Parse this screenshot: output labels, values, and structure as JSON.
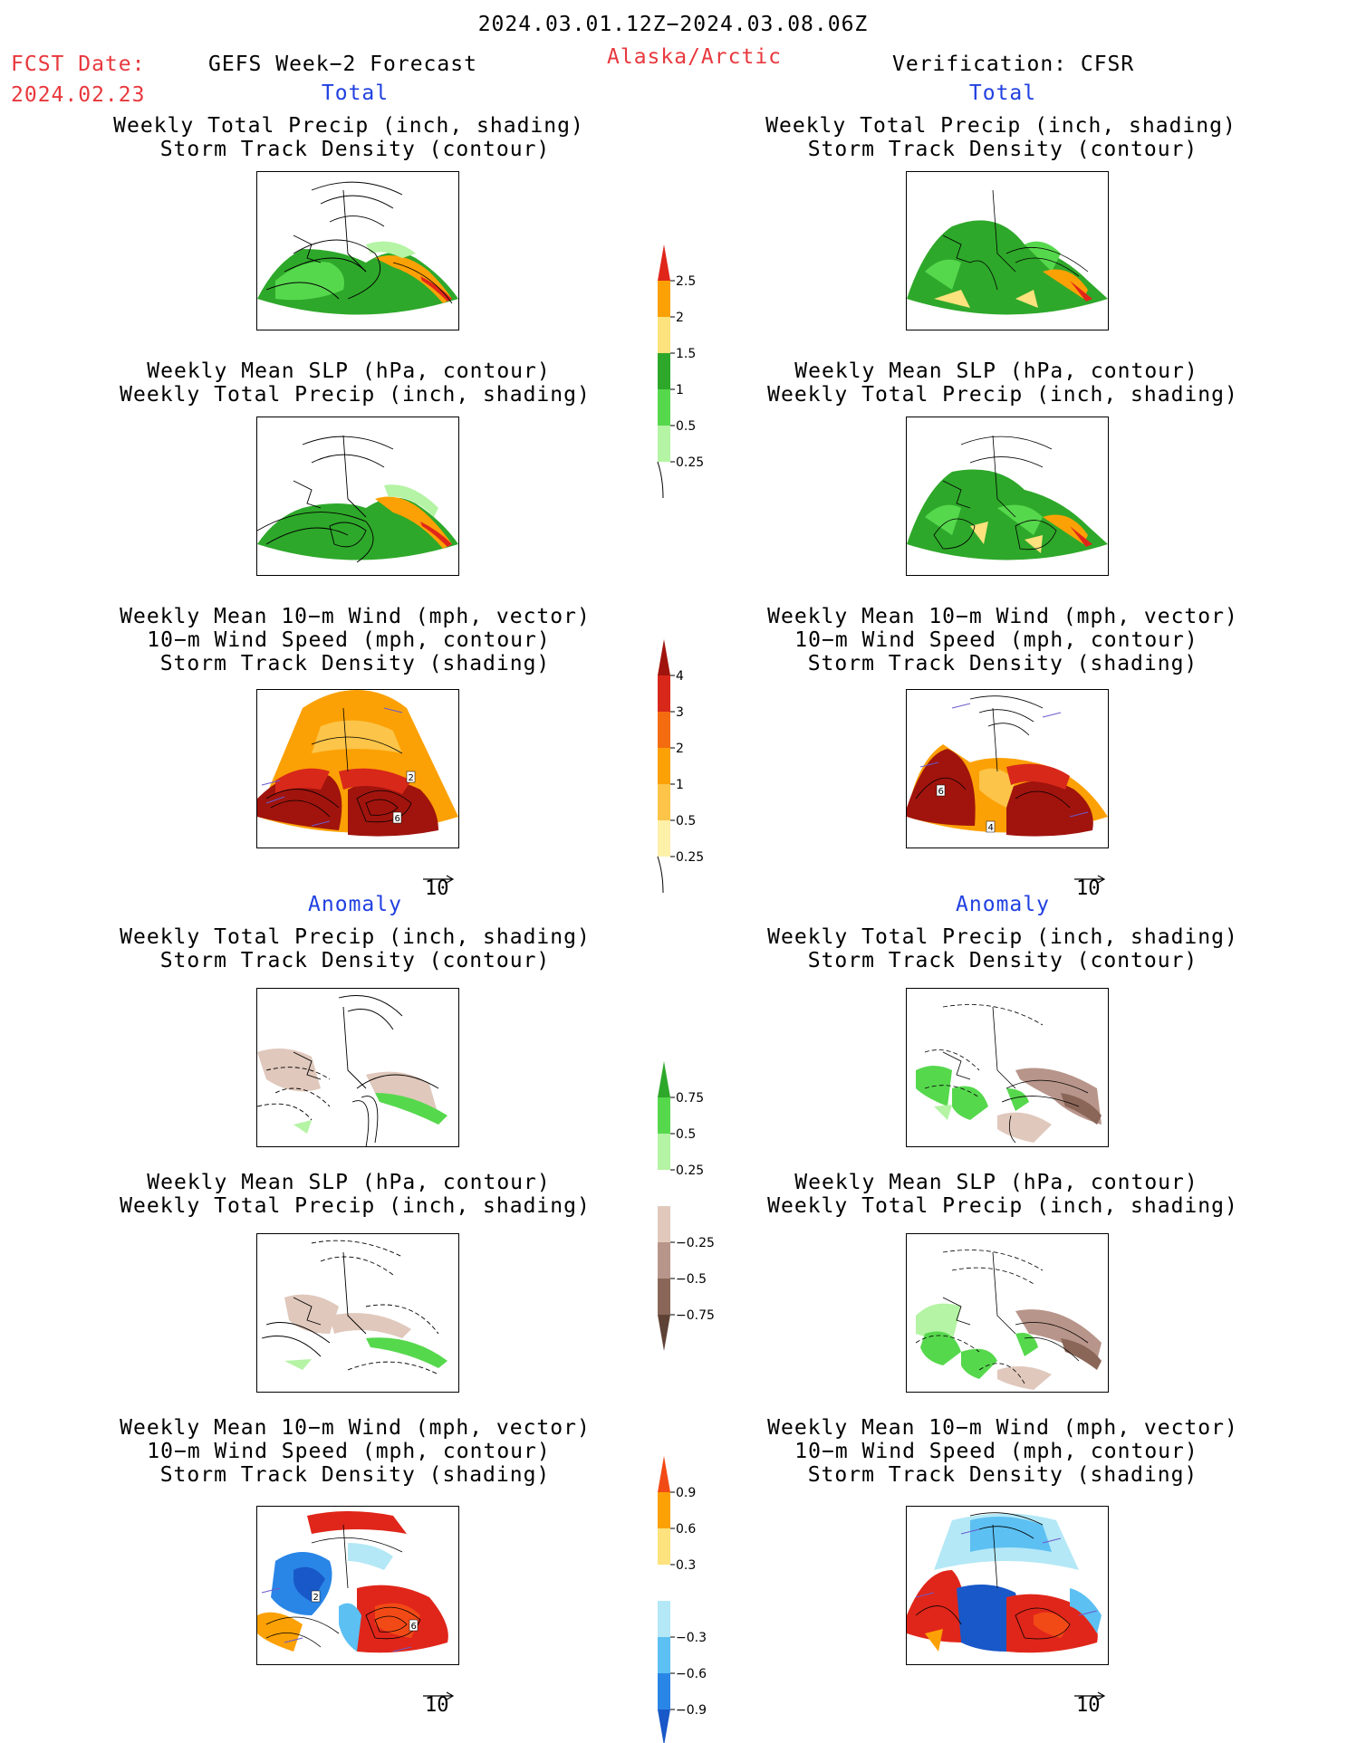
{
  "header": {
    "title": "2024.03.01.12Z−2024.03.08.06Z",
    "fcst_label": "FCST Date:",
    "fcst_date": "2024.02.23",
    "model": "GEFS Week−2 Forecast",
    "region": "Alaska/Arctic",
    "verification": "Verification: CFSR"
  },
  "sections": {
    "total": "Total",
    "anomaly": "Anomaly"
  },
  "panel_titles": {
    "precip_track": [
      "Weekly Total Precip (inch, shading)",
      "Storm Track Density (contour)"
    ],
    "slp_precip": [
      "Weekly Mean SLP (hPa, contour)",
      "Weekly Total Precip (inch, shading)"
    ],
    "wind_track": [
      "Weekly Mean 10−m Wind (mph, vector)",
      "10−m Wind Speed (mph, contour)",
      "Storm Track Density (shading)"
    ]
  },
  "vector_reference": "10",
  "contour_labels": {
    "left_total_wind": [
      "2",
      "6"
    ],
    "right_total_wind": [
      "6",
      "4"
    ],
    "left_anom_wind": [
      "2",
      "6"
    ]
  },
  "colorbars": {
    "total_precip": {
      "labels": [
        "2.5",
        "2",
        "1.5",
        "1",
        "0.5",
        "0.25"
      ],
      "colors": [
        "#e0261a",
        "#fca105",
        "#fde27d",
        "#2ea82a",
        "#56d84d",
        "#b4f4a4"
      ]
    },
    "total_track": {
      "labels": [
        "4",
        "3",
        "2",
        "1",
        "0.5",
        "0.25"
      ],
      "colors": [
        "#a0140d",
        "#d8281a",
        "#f46c10",
        "#fca105",
        "#fcc448",
        "#fdf0a8"
      ]
    },
    "anom_precip": {
      "labels": [
        "0.75",
        "0.5",
        "0.25",
        "−0.25",
        "−0.5",
        "−0.75"
      ],
      "colors": [
        "#2ea82a",
        "#56d84d",
        "#b4f4a4",
        "#ffffff",
        "#e0c8bc",
        "#b8958a",
        "#8a6658",
        "#5e4236"
      ]
    },
    "anom_track": {
      "labels": [
        "0.9",
        "0.6",
        "0.3",
        "−0.3",
        "−0.6",
        "−0.9"
      ],
      "colors": [
        "#f24a16",
        "#fca105",
        "#fde27d",
        "#ffffff",
        "#b4e8f6",
        "#5cc0f2",
        "#2a86e6",
        "#1858c8"
      ]
    }
  }
}
